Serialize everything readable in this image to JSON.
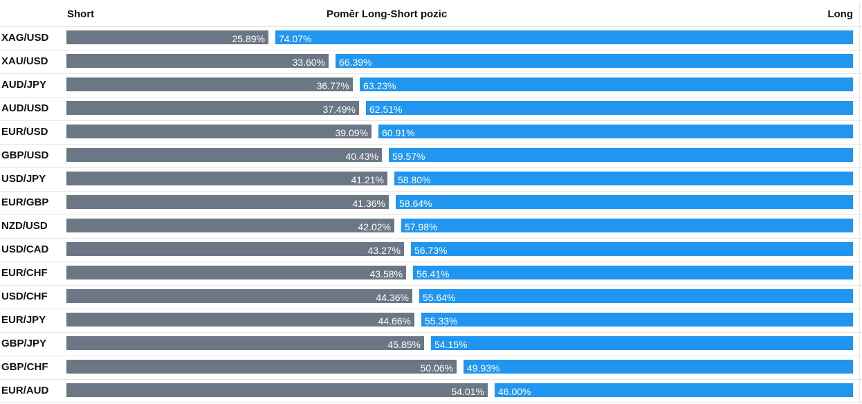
{
  "chart_data": {
    "type": "bar",
    "orientation": "horizontal-stacked-100",
    "title": "Poměr Long-Short pozic",
    "left_label": "Short",
    "right_label": "Long",
    "colors": {
      "short": "#6b7785",
      "long": "#2196f0"
    },
    "categories": [
      "XAG/USD",
      "XAU/USD",
      "AUD/JPY",
      "AUD/USD",
      "EUR/USD",
      "GBP/USD",
      "USD/JPY",
      "EUR/GBP",
      "NZD/USD",
      "USD/CAD",
      "EUR/CHF",
      "USD/CHF",
      "EUR/JPY",
      "GBP/JPY",
      "GBP/CHF",
      "EUR/AUD"
    ],
    "series": [
      {
        "name": "Short",
        "values": [
          25.89,
          33.6,
          36.77,
          37.49,
          39.09,
          40.43,
          41.21,
          41.36,
          42.02,
          43.27,
          43.58,
          44.36,
          44.66,
          45.85,
          50.06,
          54.01
        ],
        "labels": [
          "25.89%",
          "33.60%",
          "36.77%",
          "37.49%",
          "39.09%",
          "40.43%",
          "41.21%",
          "41.36%",
          "42.02%",
          "43.27%",
          "43.58%",
          "44.36%",
          "44.66%",
          "45.85%",
          "50.06%",
          "54.01%"
        ]
      },
      {
        "name": "Long",
        "values": [
          74.07,
          66.39,
          63.23,
          62.51,
          60.91,
          59.57,
          58.8,
          58.64,
          57.98,
          56.73,
          56.41,
          55.64,
          55.33,
          54.15,
          49.93,
          46.0
        ],
        "labels": [
          "74.07%",
          "66.39%",
          "63.23%",
          "62.51%",
          "60.91%",
          "59.57%",
          "58.80%",
          "58.64%",
          "57.98%",
          "56.73%",
          "56.41%",
          "55.64%",
          "55.33%",
          "54.15%",
          "49.93%",
          "46.00%"
        ]
      }
    ]
  }
}
